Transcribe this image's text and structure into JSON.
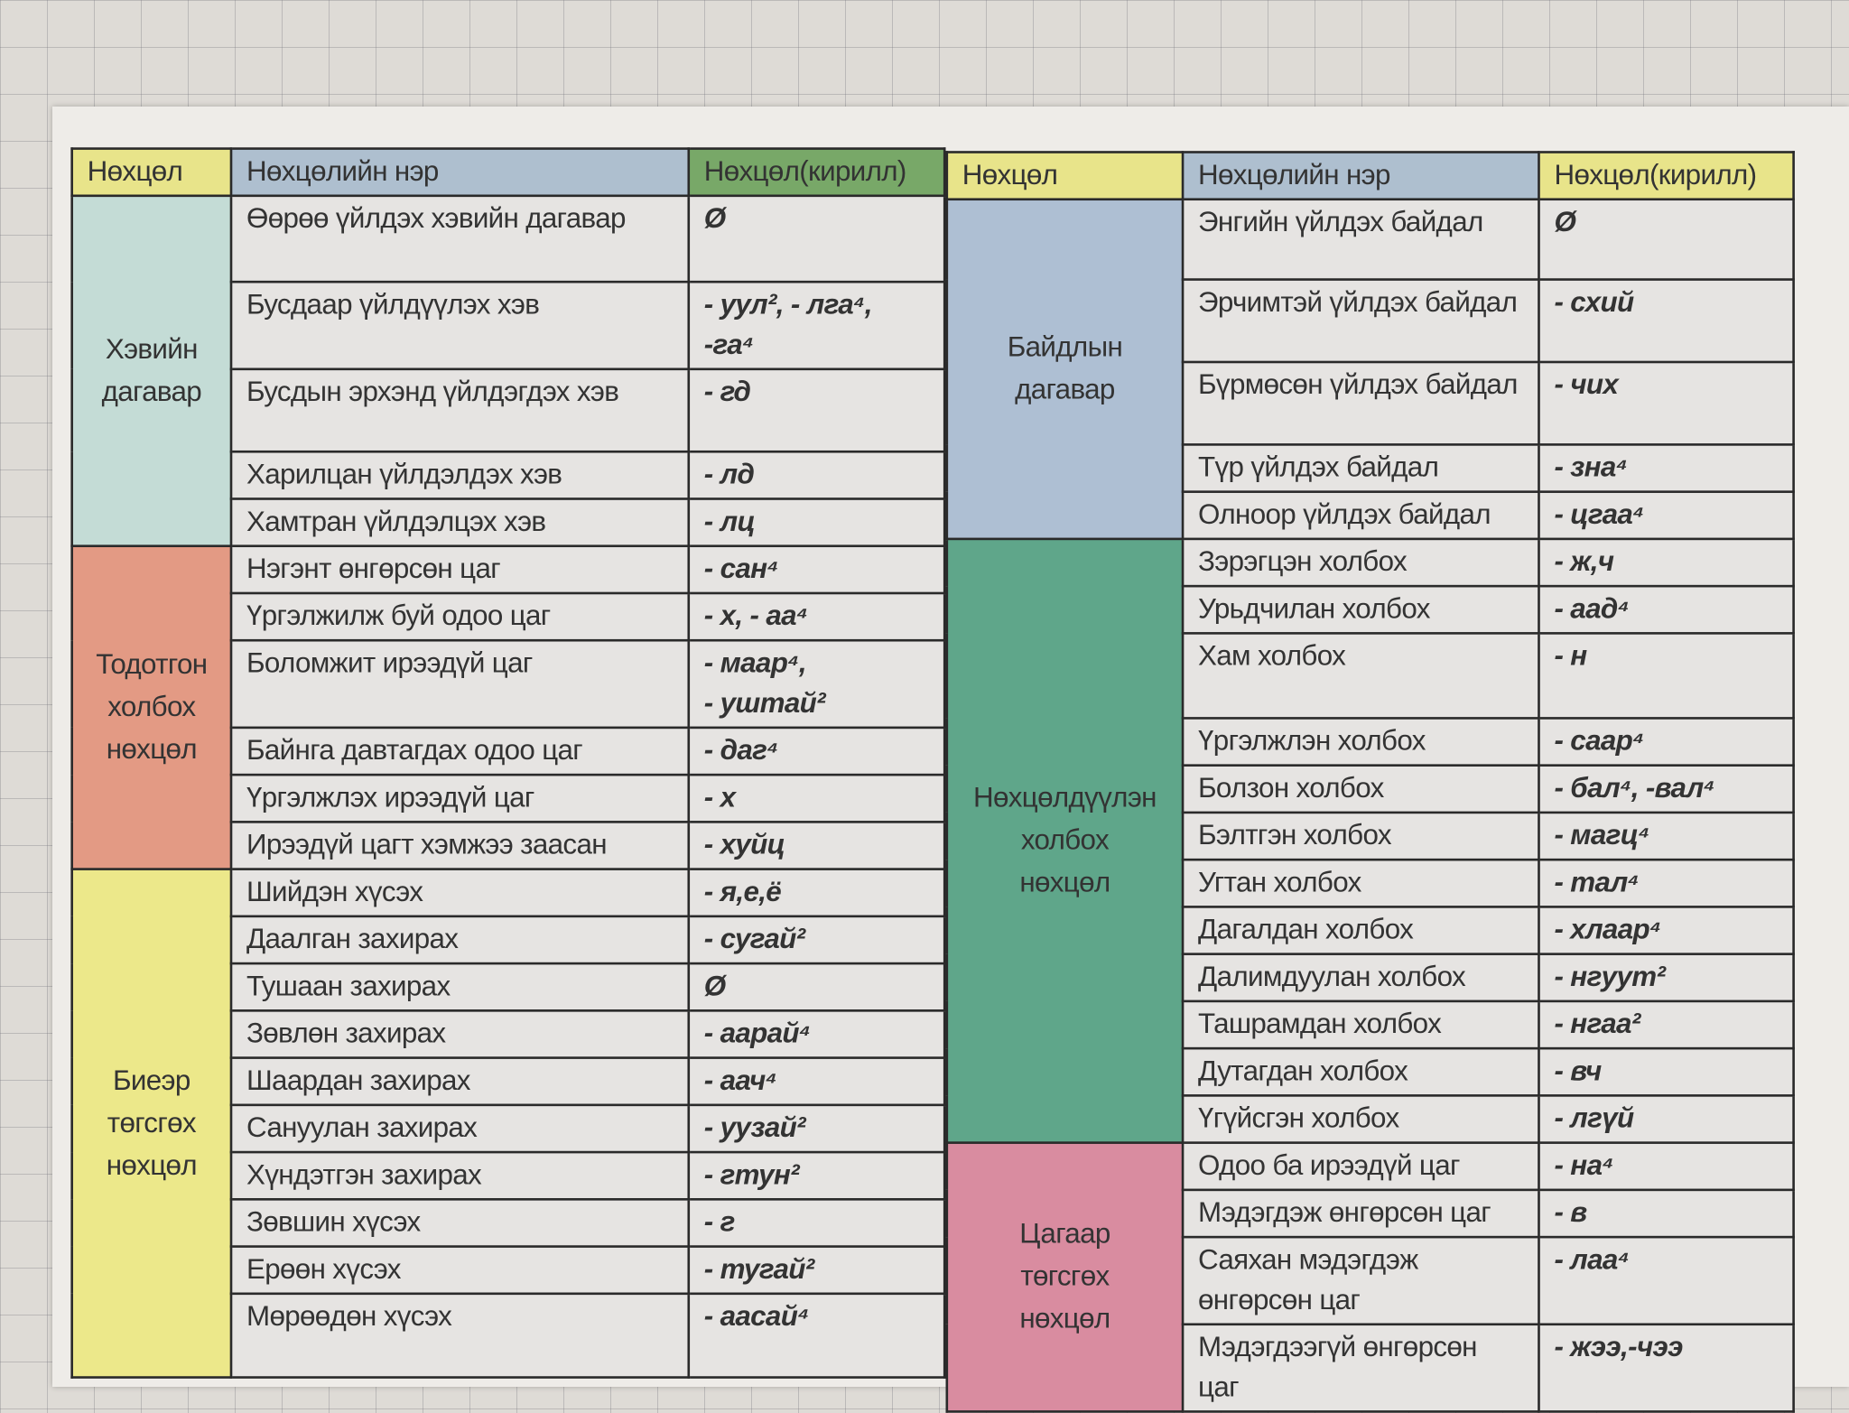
{
  "colors": {
    "header_col1": "#e8e48a",
    "header_col2": "#aebfcf",
    "header_col3": "#78a868"
  },
  "left": {
    "headers": [
      "Нөхцөл",
      "Нөхцөлийн нэр",
      "Нөхцөл(кирилл)"
    ],
    "header_colors": [
      "#e8e48a",
      "#aebfcf",
      "#78a868"
    ],
    "groups": [
      {
        "label": "Хэвийн\nдагавар",
        "color": "#c4dcd6",
        "rows": [
          {
            "name": "Өөрөө үйлдэх хэвийн дагавар",
            "suffix": "Ø"
          },
          {
            "name": "Бусдаар үйлдүүлэх хэв",
            "suffix": "- уул², - лга⁴,\n-га⁴"
          },
          {
            "name": "Бусдын эрхэнд үйлдэгдэх хэв",
            "suffix": "- гд"
          },
          {
            "name": "Харилцан үйлдэлдэх хэв",
            "suffix": "- лд"
          },
          {
            "name": "Хамтран үйлдэлцэх хэв",
            "suffix": "- лц"
          }
        ]
      },
      {
        "label": "Тодотгон\nхолбох\nнөхцөл",
        "color": "#e39a84",
        "rows": [
          {
            "name": "Нэгэнт өнгөрсөн цаг",
            "suffix": "- сан⁴"
          },
          {
            "name": "Үргэлжилж буй одоо цаг",
            "suffix": "- х, - аа⁴"
          },
          {
            "name": "Боломжит ирээдүй цаг",
            "suffix": "- маар⁴,\n- уштай²"
          },
          {
            "name": "Байнга давтагдах одоо цаг",
            "suffix": "- даг⁴"
          },
          {
            "name": "Үргэлжлэх ирээдүй цаг",
            "suffix": "- х"
          },
          {
            "name": "Ирээдүй цагт хэмжээ заасан",
            "suffix": "- хуйц"
          }
        ]
      },
      {
        "label": "Биеэр\nтөгсгөх\nнөхцөл",
        "color": "#ece88a",
        "rows": [
          {
            "name": "Шийдэн хүсэх",
            "suffix": "- я,е,ё"
          },
          {
            "name": "Даалган захирах",
            "suffix": "- сугай²"
          },
          {
            "name": "Тушаан захирах",
            "suffix": "Ø"
          },
          {
            "name": "Зөвлөн захирах",
            "suffix": "- аарай⁴"
          },
          {
            "name": "Шаардан захирах",
            "suffix": "- аач⁴"
          },
          {
            "name": "Сануулан захирах",
            "suffix": "- уузай²"
          },
          {
            "name": "Хүндэтгэн захирах",
            "suffix": "- гтун²"
          },
          {
            "name": "Зөвшин хүсэх",
            "suffix": "- г"
          },
          {
            "name": "Ерөөн хүсэх",
            "suffix": "- тугай²"
          },
          {
            "name": "Мөрөөдөн хүсэх",
            "suffix": "- аасай⁴"
          }
        ]
      }
    ]
  },
  "right": {
    "headers": [
      "Нөхцөл",
      "Нөхцөлийн нэр",
      "Нөхцөл(кирилл)"
    ],
    "header_colors": [
      "#e8e48a",
      "#aebfcf",
      "#e8e48a"
    ],
    "groups": [
      {
        "label": "Байдлын\nдагавар",
        "color": "#aebfd3",
        "rows": [
          {
            "name": "Энгийн үйлдэх байдал",
            "suffix": "Ø"
          },
          {
            "name": "Эрчимтэй үйлдэх байдал",
            "suffix": "- схий"
          },
          {
            "name": "Бүрмөсөн үйлдэх байдал",
            "suffix": "- чих"
          },
          {
            "name": "Түр үйлдэх байдал",
            "suffix": "- зна⁴"
          },
          {
            "name": "Олноор үйлдэх байдал",
            "suffix": "- цгаа⁴"
          }
        ]
      },
      {
        "label": "Нөхцөлдүүлэн\nхолбох\nнөхцөл",
        "color": "#5fa68a",
        "rows": [
          {
            "name": "Зэрэгцэн холбох",
            "suffix": "- ж,ч"
          },
          {
            "name": "Урьдчилан холбох",
            "suffix": "- аад⁴"
          },
          {
            "name": "Хам холбох",
            "suffix": "- н"
          },
          {
            "name": "Үргэлжлэн холбох",
            "suffix": "- саар⁴"
          },
          {
            "name": "Болзон холбох",
            "suffix": "- бал⁴, -вал⁴"
          },
          {
            "name": "Бэлтгэн холбох",
            "suffix": "- магц⁴"
          },
          {
            "name": "Угтан холбох",
            "suffix": "- тал⁴"
          },
          {
            "name": "Дагалдан холбох",
            "suffix": "- хлаар⁴"
          },
          {
            "name": "Далимдуулан холбох",
            "suffix": "- нгуут²"
          },
          {
            "name": "Ташрамдан холбох",
            "suffix": "- нгаа²"
          },
          {
            "name": "Дутагдан холбох",
            "suffix": "- вч"
          },
          {
            "name": "Үгүйсгэн холбох",
            "suffix": "- лгүй"
          }
        ]
      },
      {
        "label": "Цагаар\nтөгсгөх\nнөхцөл",
        "color": "#d98ca0",
        "rows": [
          {
            "name": "Одоо ба ирээдүй цаг",
            "suffix": "- на⁴"
          },
          {
            "name": "Мэдэгдэж өнгөрсөн цаг",
            "suffix": "- в"
          },
          {
            "name": "Саяхан мэдэгдэж өнгөрсөн цаг",
            "suffix": "- лаа⁴"
          },
          {
            "name": "Мэдэгдээгүй өнгөрсөн цаг",
            "suffix": "- жээ,-чээ"
          }
        ]
      }
    ]
  }
}
